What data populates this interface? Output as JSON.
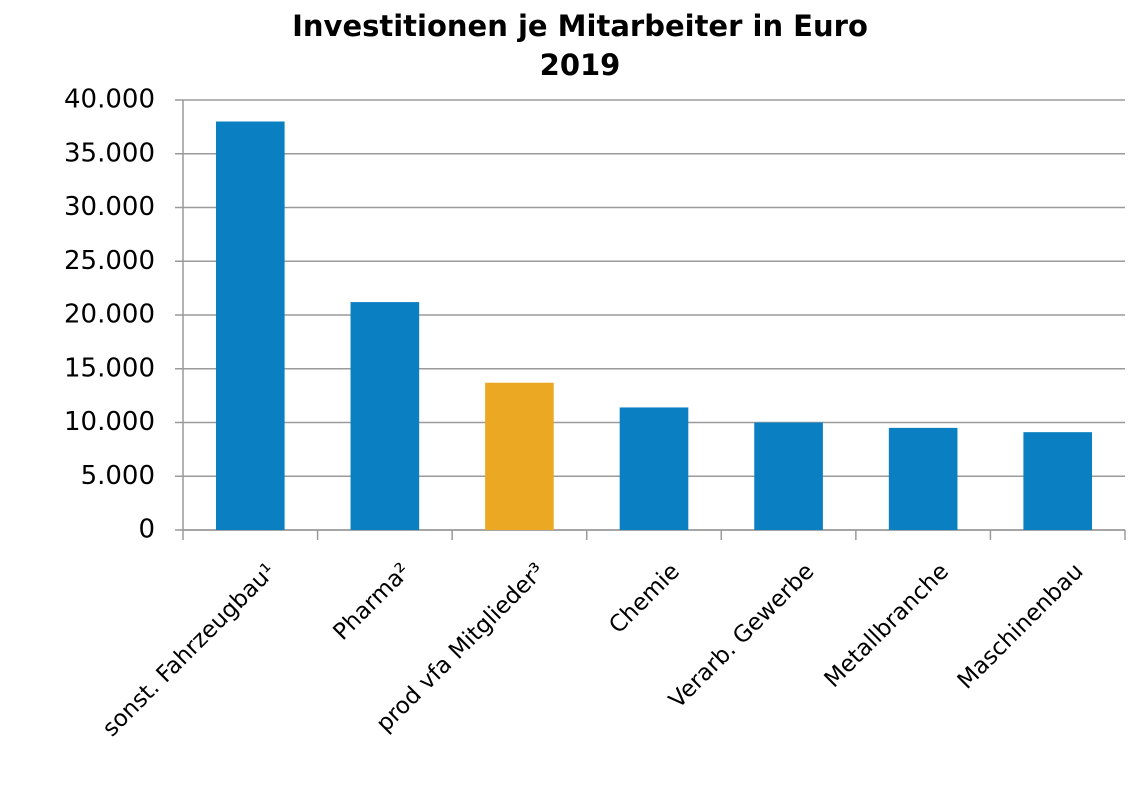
{
  "chart_data": {
    "type": "bar",
    "title": "Investitionen je Mitarbeiter in Euro",
    "subtitle": "2019",
    "categories": [
      "sonst. Fahrzeugbau¹",
      "Pharma²",
      "prod vfa Mitglieder³",
      "Chemie",
      "Verarb. Gewerbe",
      "Metallbranche",
      "Maschinenbau"
    ],
    "values": [
      38000,
      21200,
      13700,
      11400,
      10000,
      9500,
      9100
    ],
    "colors": [
      "#0a7fc2",
      "#0a7fc2",
      "#eba823",
      "#0a7fc2",
      "#0a7fc2",
      "#0a7fc2",
      "#0a7fc2"
    ],
    "ylim": [
      0,
      40000
    ],
    "yticks": [
      0,
      {
        "value": 5000,
        "label": "5.000"
      },
      {
        "value": 10000,
        "label": "10.000"
      },
      {
        "value": 15000,
        "label": "15.000"
      },
      {
        "value": 20000,
        "label": "20.000"
      },
      {
        "value": 25000,
        "label": "25.000"
      },
      {
        "value": 30000,
        "label": "30.000"
      },
      {
        "value": 35000,
        "label": "35.000"
      },
      {
        "value": 40000,
        "label": "40.000"
      }
    ],
    "grid": true
  }
}
